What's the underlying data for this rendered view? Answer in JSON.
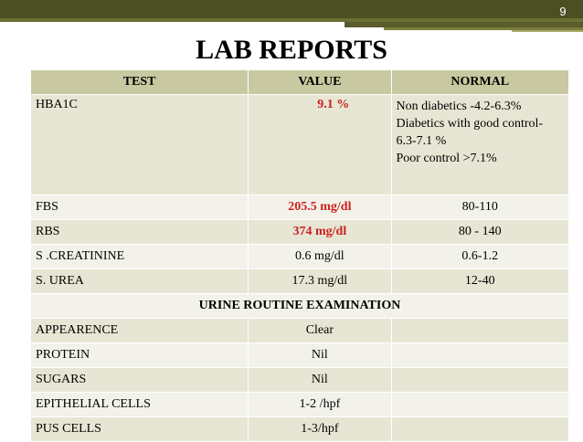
{
  "slide": {
    "number": "9",
    "title": "LAB REPORTS"
  },
  "table": {
    "headers": [
      "TEST",
      "VALUE",
      "NORMAL"
    ],
    "rows": [
      {
        "test": "HBA1C",
        "value": "9.1 %",
        "normal_lines": [
          "Non diabetics -4.2-6.3%",
          "Diabetics with good control-",
          "6.3-7.1 %",
          "Poor control >7.1%"
        ]
      },
      {
        "test": "FBS",
        "value": "205.5 mg/dl",
        "normal": "80-110"
      },
      {
        "test": "RBS",
        "value": "374 mg/dl",
        "normal": "80 - 140"
      },
      {
        "test": "S .CREATININE",
        "value": "0.6 mg/dl",
        "normal": "0.6-1.2"
      },
      {
        "test": "S. UREA",
        "value": "17.3 mg/dl",
        "normal": "12-40"
      }
    ],
    "section_title": "URINE ROUTINE EXAMINATION",
    "urine_rows": [
      {
        "test": "APPEARENCE",
        "value": "Clear"
      },
      {
        "test": "PROTEIN",
        "value": "Nil"
      },
      {
        "test": "SUGARS",
        "value": "Nil"
      },
      {
        "test": "EPITHELIAL CELLS",
        "value": "1-2 /hpf"
      },
      {
        "test": "PUS CELLS",
        "value": "1-3/hpf"
      }
    ]
  },
  "colors": {
    "abnormal": "#cc1f1f",
    "header_bg": "#c9c9a1",
    "row_dark": "#e7e6d4",
    "row_light": "#f3f2ea",
    "topbar": "#4c4f22"
  }
}
